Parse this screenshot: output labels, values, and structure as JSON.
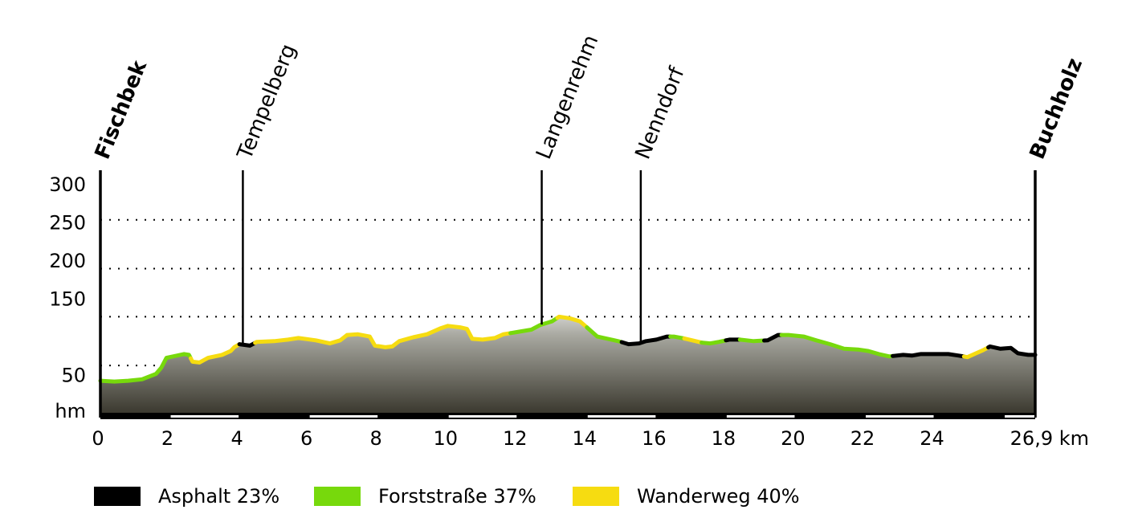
{
  "chart_data": {
    "type": "area",
    "title": "",
    "xlabel": "km",
    "ylabel": "hm",
    "xlim": [
      0,
      26.9
    ],
    "ylim": [
      0,
      320
    ],
    "x_ticks": [
      {
        "value": 0,
        "label": "0"
      },
      {
        "value": 2,
        "label": "2"
      },
      {
        "value": 4,
        "label": "4"
      },
      {
        "value": 6,
        "label": "6"
      },
      {
        "value": 8,
        "label": "8"
      },
      {
        "value": 10,
        "label": "10"
      },
      {
        "value": 12,
        "label": "12"
      },
      {
        "value": 14,
        "label": "14"
      },
      {
        "value": 16,
        "label": "16"
      },
      {
        "value": 18,
        "label": "18"
      },
      {
        "value": 20,
        "label": "20"
      },
      {
        "value": 22,
        "label": "22"
      },
      {
        "value": 24,
        "label": "24"
      },
      {
        "value": 26.9,
        "label": "26,9 km"
      }
    ],
    "y_ticks": [
      {
        "value": 50,
        "label": "50"
      },
      {
        "value": 150,
        "label": "150"
      },
      {
        "value": 200,
        "label": "200"
      },
      {
        "value": 250,
        "label": "250"
      },
      {
        "value": 300,
        "label": "300"
      }
    ],
    "y_unit_label": "hm",
    "grid": {
      "horizontal_dotted_at": [
        63,
        127,
        190,
        254
      ]
    },
    "places": [
      {
        "name": "Fischbek",
        "km": 0,
        "bold": true
      },
      {
        "name": "Tempelberg",
        "km": 4.1,
        "bold": false
      },
      {
        "name": "Langenrehm",
        "km": 12.7,
        "bold": false
      },
      {
        "name": "Nenndorf",
        "km": 15.55,
        "bold": false
      },
      {
        "name": "Buchholz",
        "km": 26.9,
        "bold": true
      }
    ],
    "profile": [
      {
        "x": 0,
        "y": 43
      },
      {
        "x": 0.4,
        "y": 42
      },
      {
        "x": 0.8,
        "y": 43
      },
      {
        "x": 1.2,
        "y": 45
      },
      {
        "x": 1.6,
        "y": 52
      },
      {
        "x": 1.75,
        "y": 60
      },
      {
        "x": 1.9,
        "y": 73
      },
      {
        "x": 2.2,
        "y": 76
      },
      {
        "x": 2.4,
        "y": 78
      },
      {
        "x": 2.55,
        "y": 77
      },
      {
        "x": 2.65,
        "y": 68
      },
      {
        "x": 2.85,
        "y": 67
      },
      {
        "x": 3.1,
        "y": 73
      },
      {
        "x": 3.5,
        "y": 77
      },
      {
        "x": 3.75,
        "y": 82
      },
      {
        "x": 3.85,
        "y": 87
      },
      {
        "x": 4.0,
        "y": 91
      },
      {
        "x": 4.3,
        "y": 89
      },
      {
        "x": 4.5,
        "y": 94
      },
      {
        "x": 5.0,
        "y": 95
      },
      {
        "x": 5.4,
        "y": 97
      },
      {
        "x": 5.7,
        "y": 99
      },
      {
        "x": 6.2,
        "y": 96
      },
      {
        "x": 6.6,
        "y": 92
      },
      {
        "x": 6.9,
        "y": 96
      },
      {
        "x": 7.1,
        "y": 103
      },
      {
        "x": 7.4,
        "y": 104
      },
      {
        "x": 7.75,
        "y": 101
      },
      {
        "x": 7.9,
        "y": 89
      },
      {
        "x": 8.2,
        "y": 87
      },
      {
        "x": 8.4,
        "y": 88
      },
      {
        "x": 8.6,
        "y": 95
      },
      {
        "x": 9.0,
        "y": 100
      },
      {
        "x": 9.4,
        "y": 104
      },
      {
        "x": 9.8,
        "y": 112
      },
      {
        "x": 10.0,
        "y": 115
      },
      {
        "x": 10.35,
        "y": 113
      },
      {
        "x": 10.55,
        "y": 111
      },
      {
        "x": 10.7,
        "y": 98
      },
      {
        "x": 11.0,
        "y": 97
      },
      {
        "x": 11.35,
        "y": 99
      },
      {
        "x": 11.6,
        "y": 104
      },
      {
        "x": 12.0,
        "y": 107
      },
      {
        "x": 12.4,
        "y": 110
      },
      {
        "x": 12.65,
        "y": 116
      },
      {
        "x": 13.0,
        "y": 121
      },
      {
        "x": 13.2,
        "y": 127
      },
      {
        "x": 13.5,
        "y": 125
      },
      {
        "x": 13.8,
        "y": 121
      },
      {
        "x": 14.05,
        "y": 111
      },
      {
        "x": 14.3,
        "y": 101
      },
      {
        "x": 14.6,
        "y": 98
      },
      {
        "x": 14.9,
        "y": 95
      },
      {
        "x": 15.2,
        "y": 91
      },
      {
        "x": 15.5,
        "y": 92
      },
      {
        "x": 15.7,
        "y": 95
      },
      {
        "x": 16.0,
        "y": 97
      },
      {
        "x": 16.3,
        "y": 101
      },
      {
        "x": 16.5,
        "y": 101
      },
      {
        "x": 16.85,
        "y": 98
      },
      {
        "x": 17.3,
        "y": 93
      },
      {
        "x": 17.55,
        "y": 92
      },
      {
        "x": 17.8,
        "y": 94
      },
      {
        "x": 18.1,
        "y": 97
      },
      {
        "x": 18.4,
        "y": 97
      },
      {
        "x": 18.8,
        "y": 95
      },
      {
        "x": 19.2,
        "y": 96
      },
      {
        "x": 19.5,
        "y": 103
      },
      {
        "x": 19.8,
        "y": 103
      },
      {
        "x": 20.25,
        "y": 101
      },
      {
        "x": 20.6,
        "y": 96
      },
      {
        "x": 21.0,
        "y": 91
      },
      {
        "x": 21.4,
        "y": 85
      },
      {
        "x": 21.8,
        "y": 84
      },
      {
        "x": 22.1,
        "y": 82
      },
      {
        "x": 22.4,
        "y": 78
      },
      {
        "x": 22.7,
        "y": 75
      },
      {
        "x": 23.1,
        "y": 77
      },
      {
        "x": 23.35,
        "y": 76
      },
      {
        "x": 23.6,
        "y": 78
      },
      {
        "x": 24.0,
        "y": 78
      },
      {
        "x": 24.4,
        "y": 78
      },
      {
        "x": 24.7,
        "y": 76
      },
      {
        "x": 24.95,
        "y": 74
      },
      {
        "x": 25.2,
        "y": 79
      },
      {
        "x": 25.4,
        "y": 83
      },
      {
        "x": 25.6,
        "y": 88
      },
      {
        "x": 25.9,
        "y": 85
      },
      {
        "x": 26.2,
        "y": 86
      },
      {
        "x": 26.4,
        "y": 79
      },
      {
        "x": 26.7,
        "y": 77
      },
      {
        "x": 26.9,
        "y": 77
      }
    ],
    "surface_segments": [
      {
        "type": "forst",
        "from": 0,
        "to": 2.6
      },
      {
        "type": "wander",
        "from": 2.6,
        "to": 4.0
      },
      {
        "type": "asphalt",
        "from": 4.0,
        "to": 4.45
      },
      {
        "type": "wander",
        "from": 4.45,
        "to": 11.8
      },
      {
        "type": "forst",
        "from": 11.8,
        "to": 13.15
      },
      {
        "type": "wander",
        "from": 13.15,
        "to": 14.0
      },
      {
        "type": "forst",
        "from": 14.0,
        "to": 15.0
      },
      {
        "type": "asphalt",
        "from": 15.0,
        "to": 16.4
      },
      {
        "type": "forst",
        "from": 16.4,
        "to": 16.8
      },
      {
        "type": "wander",
        "from": 16.8,
        "to": 17.3
      },
      {
        "type": "forst",
        "from": 17.3,
        "to": 18.0
      },
      {
        "type": "asphalt",
        "from": 18.0,
        "to": 18.4
      },
      {
        "type": "forst",
        "from": 18.4,
        "to": 19.1
      },
      {
        "type": "asphalt",
        "from": 19.1,
        "to": 19.6
      },
      {
        "type": "forst",
        "from": 19.6,
        "to": 22.8
      },
      {
        "type": "asphalt",
        "from": 22.8,
        "to": 24.85
      },
      {
        "type": "wander",
        "from": 24.85,
        "to": 25.55
      },
      {
        "type": "asphalt",
        "from": 25.55,
        "to": 26.9
      }
    ],
    "legend_position": "bottom",
    "legend": [
      {
        "label": "Asphalt 23%",
        "color": "#000000"
      },
      {
        "label": "Forststraße 37%",
        "color": "#77d90c"
      },
      {
        "label": "Wanderweg 40%",
        "color": "#f6dc11"
      }
    ],
    "colors": {
      "asphalt": "#000000",
      "forst": "#77d90c",
      "wander": "#f6dc11",
      "fill_top": "#ffffff",
      "fill_bottom": "#3a382e"
    }
  }
}
